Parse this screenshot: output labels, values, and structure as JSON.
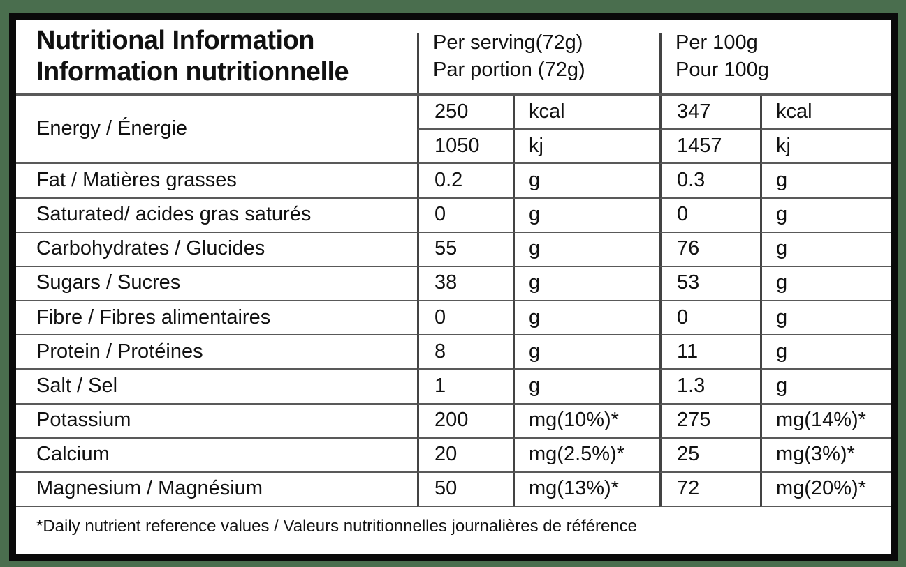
{
  "colors": {
    "page_bg": "#4a6e4e",
    "frame": "#0a0a0a",
    "table_bg": "#ffffff",
    "grid_line": "#595959",
    "grid_vline": "#434343",
    "text": "#111111"
  },
  "header": {
    "title_line1": "Nutritional Information",
    "title_line2": "Information nutritionnelle",
    "per_serving_line1": "Per serving(72g)",
    "per_serving_line2": "Par portion (72g)",
    "per_100g_line1": "Per 100g",
    "per_100g_line2": "Pour 100g"
  },
  "energy": {
    "label": "Energy / Énergie",
    "kcal": {
      "serving_value": "250",
      "serving_unit": "kcal",
      "per100_value": "347",
      "per100_unit": "kcal"
    },
    "kj": {
      "serving_value": "1050",
      "serving_unit": "kj",
      "per100_value": "1457",
      "per100_unit": "kj"
    }
  },
  "rows": [
    {
      "label": "Fat / Matières grasses",
      "serving_value": "0.2",
      "serving_unit": "g",
      "per100_value": "0.3",
      "per100_unit": "g"
    },
    {
      "label": "Saturated/ acides gras saturés",
      "serving_value": "0",
      "serving_unit": "g",
      "per100_value": "0",
      "per100_unit": "g"
    },
    {
      "label": "Carbohydrates / Glucides",
      "serving_value": "55",
      "serving_unit": "g",
      "per100_value": "76",
      "per100_unit": "g"
    },
    {
      "label": "Sugars / Sucres",
      "serving_value": "38",
      "serving_unit": "g",
      "per100_value": "53",
      "per100_unit": "g"
    },
    {
      "label": "Fibre / Fibres alimentaires",
      "serving_value": "0",
      "serving_unit": "g",
      "per100_value": "0",
      "per100_unit": "g"
    },
    {
      "label": "Protein / Protéines",
      "serving_value": "8",
      "serving_unit": "g",
      "per100_value": "11",
      "per100_unit": "g"
    },
    {
      "label": "Salt / Sel",
      "serving_value": "1",
      "serving_unit": "g",
      "per100_value": "1.3",
      "per100_unit": "g"
    },
    {
      "label": "Potassium",
      "serving_value": "200",
      "serving_unit": "mg(10%)*",
      "per100_value": "275",
      "per100_unit": "mg(14%)*"
    },
    {
      "label": "Calcium",
      "serving_value": "20",
      "serving_unit": "mg(2.5%)*",
      "per100_value": "25",
      "per100_unit": "mg(3%)*"
    },
    {
      "label": "Magnesium / Magnésium",
      "serving_value": "50",
      "serving_unit": "mg(13%)*",
      "per100_value": "72",
      "per100_unit": "mg(20%)*"
    }
  ],
  "footnote": "*Daily nutrient reference values / Valeurs nutritionnelles journalières de référence"
}
